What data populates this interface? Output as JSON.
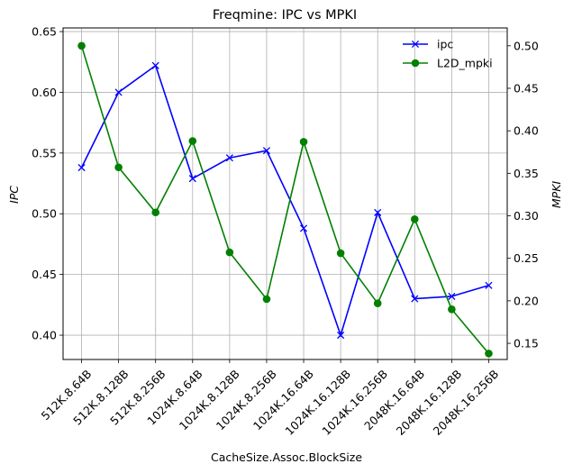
{
  "chart_data": {
    "type": "line",
    "title": "Freqmine: IPC vs MPKI",
    "xlabel": "CacheSize.Assoc.BlockSize",
    "ylabel_left": "IPC",
    "ylabel_right": "MPKI",
    "categories": [
      "512K.8.64B",
      "512K.8.128B",
      "512K.8.256B",
      "1024K.8.64B",
      "1024K.8.128B",
      "1024K.8.256B",
      "1024K.16.64B",
      "1024K.16.128B",
      "1024K.16.256B",
      "2048K.16.64B",
      "2048K.16.128B",
      "2048K.16.256B"
    ],
    "ylim_left": [
      0.38,
      0.653
    ],
    "ylim_right": [
      0.131,
      0.521
    ],
    "yticks_left": [
      0.4,
      0.45,
      0.5,
      0.55,
      0.6,
      0.65
    ],
    "yticks_left_labels": [
      "0.40",
      "0.45",
      "0.50",
      "0.55",
      "0.60",
      "0.65"
    ],
    "yticks_right": [
      0.15,
      0.2,
      0.25,
      0.3,
      0.35,
      0.4,
      0.45,
      0.5
    ],
    "yticks_right_labels": [
      "0.15",
      "0.20",
      "0.25",
      "0.30",
      "0.35",
      "0.40",
      "0.45",
      "0.50"
    ],
    "grid": true,
    "legend_position": "top-right",
    "series": [
      {
        "name": "ipc",
        "axis": "left",
        "color": "#0000ff",
        "marker": "x",
        "values": [
          0.538,
          0.6,
          0.622,
          0.529,
          0.546,
          0.552,
          0.488,
          0.4,
          0.501,
          0.43,
          0.432,
          0.441
        ]
      },
      {
        "name": "L2D_mpki",
        "axis": "right",
        "color": "#008000",
        "marker": "o",
        "values": [
          0.5,
          0.357,
          0.304,
          0.388,
          0.257,
          0.202,
          0.387,
          0.256,
          0.197,
          0.296,
          0.19,
          0.138
        ]
      }
    ]
  }
}
